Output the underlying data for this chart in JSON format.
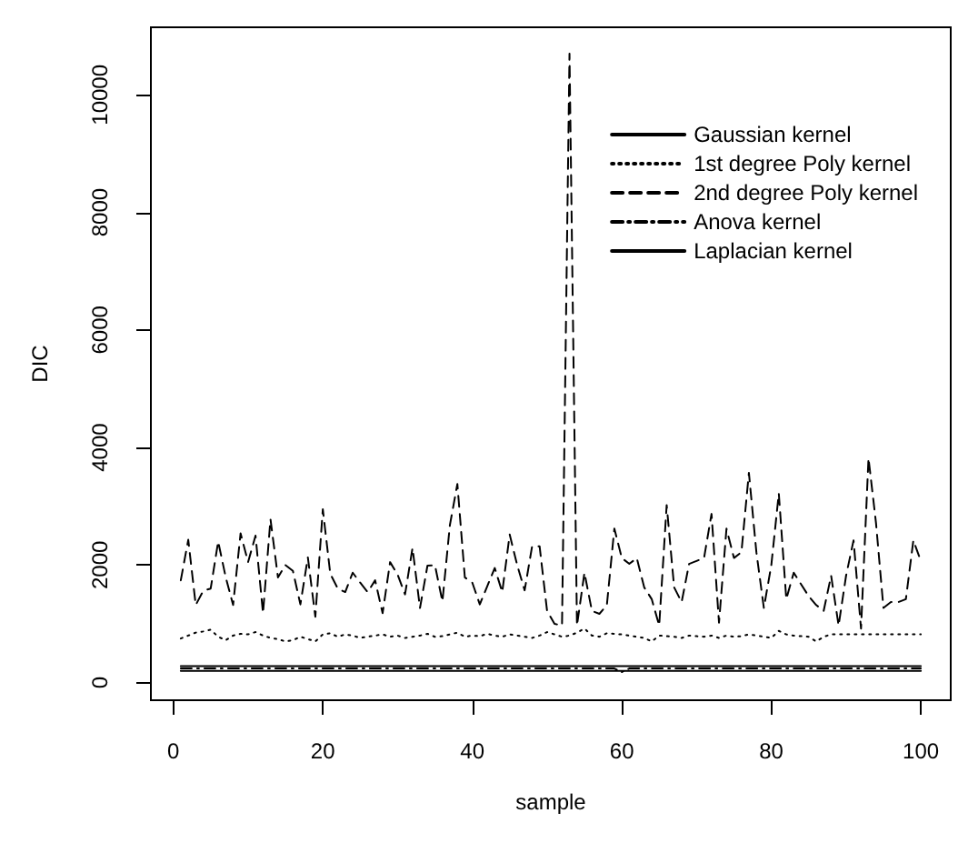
{
  "chart_data": {
    "type": "line",
    "xlabel": "sample",
    "ylabel": "DIC",
    "x": [
      1,
      2,
      3,
      4,
      5,
      6,
      7,
      8,
      9,
      10,
      11,
      12,
      13,
      14,
      15,
      16,
      17,
      18,
      19,
      20,
      21,
      22,
      23,
      24,
      25,
      26,
      27,
      28,
      29,
      30,
      31,
      32,
      33,
      34,
      35,
      36,
      37,
      38,
      39,
      40,
      41,
      42,
      43,
      44,
      45,
      46,
      47,
      48,
      49,
      50,
      51,
      52,
      53,
      54,
      55,
      56,
      57,
      58,
      59,
      60,
      61,
      62,
      63,
      64,
      65,
      66,
      67,
      68,
      69,
      70,
      71,
      72,
      73,
      74,
      75,
      76,
      77,
      78,
      79,
      80,
      81,
      82,
      83,
      84,
      85,
      86,
      87,
      88,
      89,
      90,
      91,
      92,
      93,
      94,
      95,
      96,
      97,
      98,
      99,
      100
    ],
    "xlim": [
      -3,
      104
    ],
    "xticks": [
      0,
      20,
      40,
      60,
      80,
      100
    ],
    "ylim": [
      -300,
      11150
    ],
    "yticks": [
      0,
      2000,
      4000,
      6000,
      8000,
      10000
    ],
    "grid": false,
    "legend": "top right",
    "marker": "none",
    "series": [
      {
        "name": "Gaussian kernel",
        "color": "#000000",
        "line_style": "solid",
        "values": [
          280,
          280,
          280,
          280,
          280,
          280,
          280,
          280,
          280,
          280,
          280,
          280,
          280,
          280,
          280,
          280,
          280,
          280,
          280,
          280,
          280,
          280,
          280,
          280,
          280,
          280,
          280,
          280,
          280,
          280,
          280,
          280,
          280,
          280,
          280,
          280,
          280,
          280,
          280,
          280,
          280,
          280,
          280,
          280,
          280,
          280,
          280,
          280,
          280,
          280,
          280,
          280,
          280,
          280,
          280,
          280,
          280,
          280,
          280,
          280,
          280,
          280,
          280,
          280,
          280,
          280,
          280,
          280,
          280,
          280,
          280,
          280,
          280,
          280,
          280,
          280,
          280,
          280,
          280,
          280,
          280,
          280,
          280,
          280,
          280,
          280,
          280,
          280,
          280,
          280,
          280,
          280,
          280,
          280,
          280,
          280,
          280,
          280,
          280,
          280
        ]
      },
      {
        "name": "1st degree Poly kernel",
        "color": "#000000",
        "line_style": "dotted",
        "values": [
          750,
          800,
          850,
          870,
          900,
          780,
          720,
          800,
          830,
          820,
          860,
          800,
          760,
          740,
          700,
          720,
          780,
          740,
          700,
          820,
          840,
          780,
          820,
          800,
          760,
          780,
          800,
          820,
          780,
          800,
          760,
          780,
          800,
          830,
          780,
          790,
          820,
          850,
          780,
          800,
          790,
          830,
          800,
          780,
          820,
          800,
          780,
          760,
          800,
          860,
          820,
          780,
          800,
          850,
          920,
          800,
          780,
          840,
          830,
          820,
          800,
          780,
          760,
          700,
          800,
          790,
          780,
          760,
          800,
          790,
          780,
          800,
          760,
          800,
          780,
          790,
          820,
          800,
          780,
          760,
          880,
          820,
          800,
          790,
          780,
          700,
          780,
          820,
          820,
          820,
          820,
          820,
          820,
          820,
          820,
          820,
          820,
          820,
          820,
          820
        ]
      },
      {
        "name": "2nd degree Poly kernel",
        "color": "#000000",
        "line_style": "dashed",
        "values": [
          1740,
          2430,
          1320,
          1560,
          1600,
          2400,
          1800,
          1320,
          2540,
          2050,
          2500,
          1180,
          2780,
          1790,
          2000,
          1900,
          1330,
          2130,
          1120,
          2950,
          1850,
          1600,
          1540,
          1870,
          1700,
          1540,
          1740,
          1180,
          2050,
          1840,
          1500,
          2290,
          1270,
          1990,
          2000,
          1380,
          2680,
          3380,
          1790,
          1700,
          1330,
          1640,
          1950,
          1540,
          2520,
          2000,
          1570,
          2320,
          2320,
          1220,
          1000,
          970,
          10700,
          970,
          1870,
          1220,
          1170,
          1320,
          2620,
          2120,
          2020,
          2120,
          1620,
          1420,
          970,
          3020,
          1620,
          1370,
          2020,
          2070,
          2120,
          2870,
          1020,
          2620,
          2120,
          2220,
          3570,
          2220,
          1270,
          2000,
          3220,
          1420,
          1870,
          1670,
          1470,
          1320,
          1220,
          1820,
          970,
          1820,
          2420,
          920,
          3820,
          2720,
          1270,
          1370,
          1370,
          1420,
          2420,
          2070
        ]
      },
      {
        "name": "Anova kernel",
        "color": "#000000",
        "line_style": "dashdot",
        "values": [
          240,
          240,
          240,
          240,
          240,
          240,
          240,
          240,
          240,
          240,
          240,
          240,
          240,
          240,
          240,
          240,
          240,
          240,
          240,
          240,
          240,
          240,
          240,
          240,
          240,
          240,
          240,
          240,
          240,
          240,
          240,
          240,
          240,
          240,
          240,
          240,
          240,
          240,
          240,
          240,
          240,
          240,
          240,
          240,
          240,
          240,
          240,
          240,
          240,
          240,
          240,
          240,
          240,
          240,
          240,
          240,
          240,
          240,
          240,
          180,
          240,
          240,
          240,
          240,
          240,
          240,
          240,
          240,
          240,
          240,
          240,
          240,
          240,
          240,
          240,
          240,
          240,
          240,
          240,
          240,
          240,
          240,
          240,
          240,
          240,
          240,
          240,
          240,
          240,
          240,
          240,
          240,
          240,
          240,
          240,
          240,
          240,
          240,
          240,
          240
        ]
      },
      {
        "name": "Laplacian kernel",
        "color": "#000000",
        "line_style": "solid",
        "values": [
          200,
          200,
          200,
          200,
          200,
          200,
          200,
          200,
          200,
          200,
          200,
          200,
          200,
          200,
          200,
          200,
          200,
          200,
          200,
          200,
          200,
          200,
          200,
          200,
          200,
          200,
          200,
          200,
          200,
          200,
          200,
          200,
          200,
          200,
          200,
          200,
          200,
          200,
          200,
          200,
          200,
          200,
          200,
          200,
          200,
          200,
          200,
          200,
          200,
          200,
          200,
          200,
          200,
          200,
          200,
          200,
          200,
          200,
          200,
          200,
          200,
          200,
          200,
          200,
          200,
          200,
          200,
          200,
          200,
          200,
          200,
          200,
          200,
          200,
          200,
          200,
          200,
          200,
          200,
          200,
          200,
          200,
          200,
          200,
          200,
          200,
          200,
          200,
          200,
          200,
          200,
          200,
          200,
          200,
          200,
          200,
          200,
          200,
          200,
          200
        ]
      }
    ]
  }
}
